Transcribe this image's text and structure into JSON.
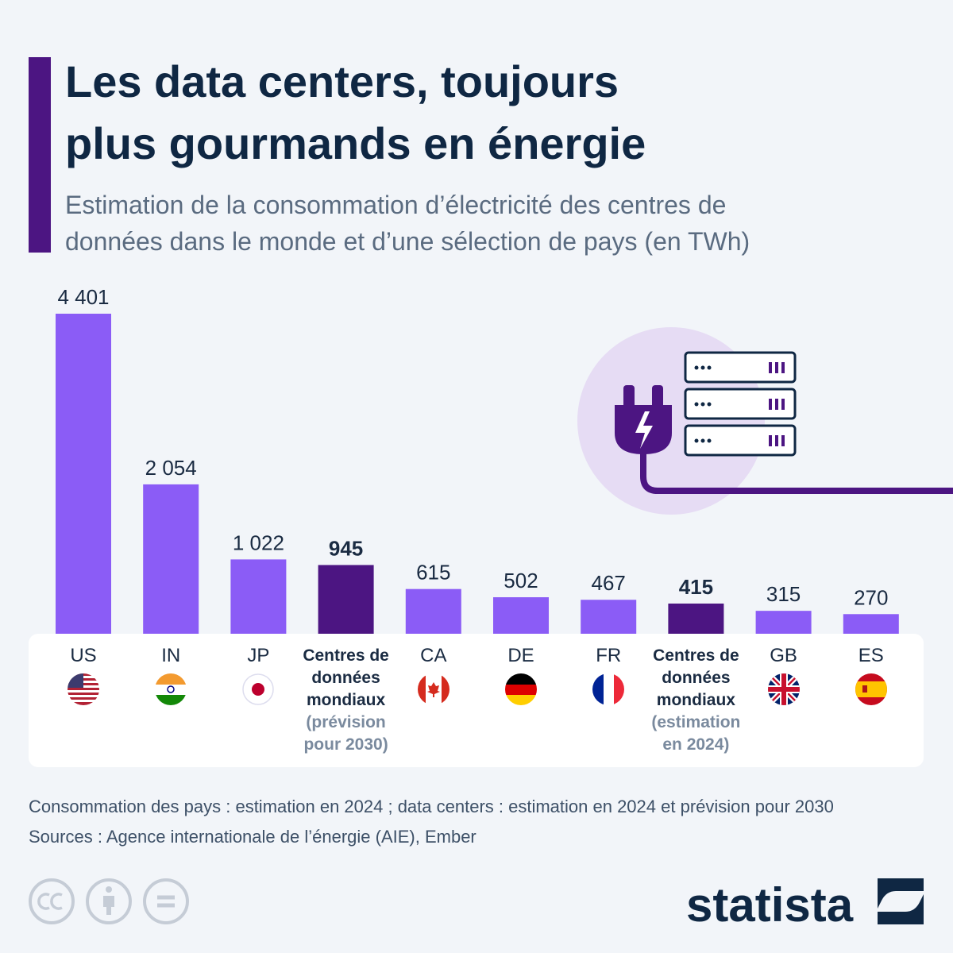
{
  "chart_data": {
    "type": "bar",
    "title": [
      "Les data centers, toujours",
      "plus gourmands en énergie"
    ],
    "subtitle": [
      "Estimation de la consommation d’électricité des centres de",
      "données dans le monde et d’une sélection de pays (en TWh)"
    ],
    "categories": [
      "US",
      "IN",
      "JP",
      "Centres de données mondiaux",
      "CA",
      "DE",
      "FR",
      "Centres de données mondiaux",
      "GB",
      "ES"
    ],
    "category_notes": [
      null,
      null,
      null,
      "(prévision pour 2030)",
      null,
      null,
      null,
      "(estimation en 2024)",
      null,
      null
    ],
    "values": [
      4401,
      2054,
      1022,
      945,
      615,
      502,
      467,
      415,
      315,
      270
    ],
    "value_labels": [
      "4 401",
      "2 054",
      "1 022",
      "945",
      "615",
      "502",
      "467",
      "415",
      "315",
      "270"
    ],
    "colors": [
      "#8b5cf6",
      "#8b5cf6",
      "#8b5cf6",
      "#4c1582",
      "#8b5cf6",
      "#8b5cf6",
      "#8b5cf6",
      "#4c1582",
      "#8b5cf6",
      "#8b5cf6"
    ],
    "notes": [
      "Consommation des pays : estimation en 2024 ; data centers : estimation en 2024 et prévision pour 2030",
      "Sources : Agence internationale de l’énergie (AIE), Ember"
    ],
    "brand": "statista"
  }
}
